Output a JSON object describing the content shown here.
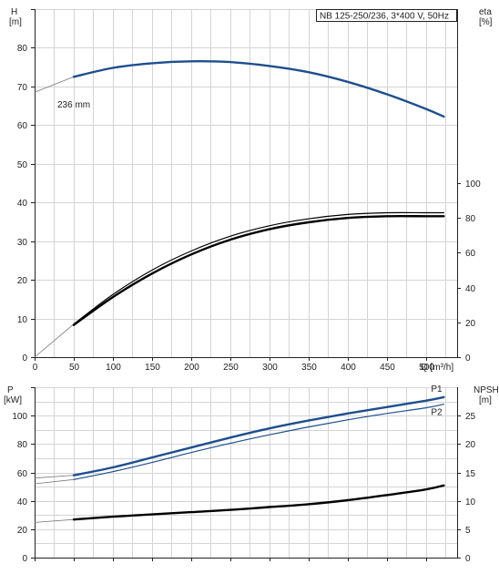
{
  "chart_data": [
    {
      "type": "line",
      "title": "NB 125-250/236, 3*400 V, 50Hz",
      "xlabel": "Q [m³/h]",
      "ylabel_left": [
        "H",
        "[m]"
      ],
      "ylabel_right": [
        "eta",
        "[%]"
      ],
      "xlim": [
        0,
        540
      ],
      "ylim_left": [
        0,
        90
      ],
      "ylim_right": [
        0,
        200
      ],
      "x_ticks": [
        "0",
        "50",
        "100",
        "150",
        "200",
        "250",
        "300",
        "350",
        "400",
        "450",
        "500"
      ],
      "y_ticks_left": [
        "0",
        "10",
        "20",
        "30",
        "40",
        "50",
        "60",
        "70",
        "80"
      ],
      "y_ticks_right": [
        "0",
        "20",
        "40",
        "60",
        "80",
        "100"
      ],
      "grid": true,
      "annotation": "236 mm",
      "series": [
        {
          "axis": "left",
          "color": "#1f4e8c",
          "width": 2.4,
          "extension": [
            [
              0,
              68.5
            ],
            [
              50,
              72.5
            ]
          ],
          "x": [
            50,
            100,
            150,
            200,
            250,
            300,
            350,
            400,
            450,
            500,
            523
          ],
          "y": [
            72.5,
            74.8,
            76.0,
            76.5,
            76.3,
            75.3,
            73.7,
            71.2,
            68.0,
            64.2,
            62.2
          ]
        },
        {
          "axis": "right",
          "color": "#000000",
          "width": 1.2,
          "extension": [
            [
              0,
              0
            ],
            [
              50,
              19
            ]
          ],
          "x": [
            50,
            100,
            150,
            200,
            250,
            300,
            350,
            400,
            450,
            500,
            523
          ],
          "y": [
            19,
            36,
            50,
            61,
            69.5,
            75.5,
            79.5,
            82,
            83,
            83,
            83
          ]
        },
        {
          "axis": "right",
          "color": "#000000",
          "width": 2.4,
          "x": [
            50,
            100,
            150,
            200,
            250,
            300,
            350,
            400,
            450,
            500,
            523
          ],
          "y": [
            18.5,
            34.5,
            48,
            59,
            67.5,
            73.5,
            77.5,
            80,
            81,
            81,
            81
          ]
        }
      ]
    },
    {
      "type": "line",
      "xlabel": "",
      "ylabel_left": [
        "P",
        "[kW]"
      ],
      "ylabel_right": [
        "NPSH",
        "[m]"
      ],
      "xlim": [
        0,
        540
      ],
      "ylim_left": [
        0,
        120
      ],
      "ylim_right": [
        0,
        30
      ],
      "y_ticks_left": [
        "0",
        "20",
        "40",
        "60",
        "80",
        "100"
      ],
      "y_ticks_right": [
        "0",
        "5",
        "10",
        "15",
        "20",
        "25"
      ],
      "grid": true,
      "series": [
        {
          "name": "P1",
          "axis": "left",
          "color": "#1f4e8c",
          "width": 2.4,
          "extension": [
            [
              0,
              56
            ],
            [
              50,
              58
            ]
          ],
          "x": [
            50,
            100,
            150,
            200,
            250,
            300,
            350,
            400,
            450,
            500,
            523
          ],
          "y": [
            58,
            63.5,
            70.5,
            77.5,
            84.5,
            91,
            96.5,
            101.5,
            106,
            110.5,
            113
          ]
        },
        {
          "name": "P2",
          "axis": "left",
          "color": "#1f4e8c",
          "width": 1.2,
          "extension": [
            [
              0,
              52
            ],
            [
              50,
              55
            ]
          ],
          "x": [
            50,
            100,
            150,
            200,
            250,
            300,
            350,
            400,
            450,
            500,
            523
          ],
          "y": [
            55,
            60.5,
            67,
            74,
            80.5,
            86.5,
            92,
            97,
            101.5,
            105.5,
            108
          ]
        },
        {
          "axis": "right",
          "color": "#000000",
          "width": 2.4,
          "extension": [
            [
              0,
              6.2
            ],
            [
              50,
              6.7
            ]
          ],
          "x": [
            50,
            100,
            150,
            200,
            250,
            300,
            350,
            400,
            450,
            500,
            523
          ],
          "y": [
            6.7,
            7.2,
            7.6,
            8.0,
            8.4,
            8.9,
            9.4,
            10.1,
            11.0,
            12.0,
            12.7
          ]
        }
      ]
    }
  ]
}
